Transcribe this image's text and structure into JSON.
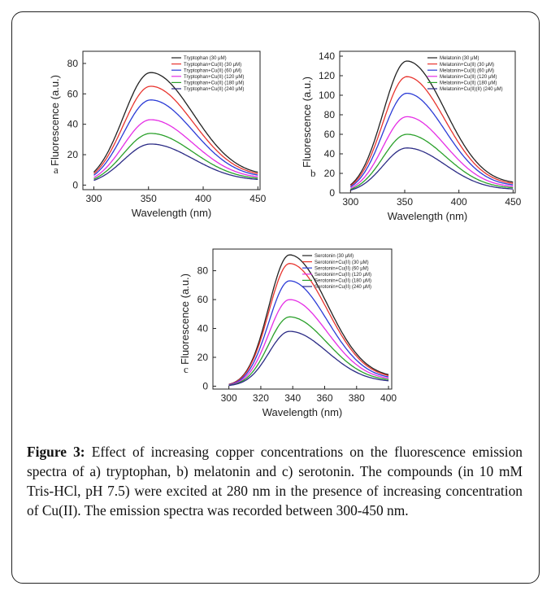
{
  "figure": {
    "caption_label": "Figure 3:",
    "caption_text": " Effect of increasing copper concentrations on the fluorescence emission spectra of a) tryptophan, b) melatonin and c) serotonin. The compounds (in 10 mM Tris-HCl, pH 7.5) were excited at 280 nm in the presence of increasing concentration of Cu(II). The emission spectra was recorded between 300-450 nm."
  },
  "colors": [
    "#222222",
    "#e8342e",
    "#2b3bd6",
    "#e52ee5",
    "#2aa02a",
    "#2b2b85"
  ],
  "chart_data": [
    {
      "type": "line",
      "panel_label": "a",
      "xlabel": "Wavelength (nm)",
      "ylabel": "Fluorescence (a.u.)",
      "xlim": [
        290,
        452
      ],
      "ylim": [
        -3,
        88
      ],
      "xticks": [
        300,
        350,
        400,
        450
      ],
      "yticks": [
        0,
        20,
        40,
        60,
        80
      ],
      "peak_x": 352,
      "start_x": 300,
      "end_x": 450,
      "width_left": 25,
      "width_right": 40,
      "legend_position": "top-right",
      "series": [
        {
          "name": "Tryptophan (30 μM)",
          "peak": 74,
          "end": 5
        },
        {
          "name": "Tryptophan+Cu(II) (30 μM)",
          "peak": 65,
          "end": 4.5
        },
        {
          "name": "Tryptophan+Cu(II) (60 μM)",
          "peak": 56,
          "end": 4
        },
        {
          "name": "Tryptophan+Cu(II) (120 μM)",
          "peak": 43,
          "end": 3.5
        },
        {
          "name": "Tryptophan+Cu(II) (180 μM)",
          "peak": 34,
          "end": 3
        },
        {
          "name": "Tryptophan+Cu(II) (240 μM)",
          "peak": 27,
          "end": 2.5
        }
      ]
    },
    {
      "type": "line",
      "panel_label": "b",
      "xlabel": "Wavelength (nm)",
      "ylabel": "Fluorescence (a.u.)",
      "xlim": [
        290,
        452
      ],
      "ylim": [
        0,
        145
      ],
      "xticks": [
        300,
        350,
        400,
        450
      ],
      "yticks": [
        0,
        20,
        40,
        60,
        80,
        100,
        120,
        140
      ],
      "peak_x": 352,
      "start_x": 300,
      "end_x": 450,
      "width_left": 22,
      "width_right": 36,
      "legend_position": "top-right",
      "series": [
        {
          "name": "Melatonin (30 μM)",
          "peak": 135,
          "end": 8
        },
        {
          "name": "Melatonin+Cu(II) (30 μM)",
          "peak": 119,
          "end": 7
        },
        {
          "name": "Melatonin+Cu(II) (60 μM)",
          "peak": 102,
          "end": 6
        },
        {
          "name": "Melatonin+Cu(II) (120 μM)",
          "peak": 78,
          "end": 5
        },
        {
          "name": "Melatonin+Cu(II) (180 μM)",
          "peak": 60,
          "end": 4
        },
        {
          "name": "Melatonin+Cu(II)(II) (240 μM)",
          "peak": 46,
          "end": 3
        }
      ]
    },
    {
      "type": "line",
      "panel_label": "c",
      "xlabel": "Wavelength (nm)",
      "ylabel": "Fluorescence (a.u.)",
      "xlim": [
        290,
        402
      ],
      "ylim": [
        -2,
        95
      ],
      "xticks": [
        300,
        320,
        340,
        360,
        380,
        400
      ],
      "yticks": [
        0,
        20,
        40,
        60,
        80
      ],
      "peak_x": 338,
      "start_x": 300,
      "end_x": 400,
      "width_left": 13,
      "width_right": 24,
      "legend_position": "top-right",
      "series": [
        {
          "name": "Serotonin (30 μM)",
          "peak": 91,
          "end": 5
        },
        {
          "name": "Serotonin+Cu(II) (30 μM)",
          "peak": 85,
          "end": 4.5
        },
        {
          "name": "Serotonin+Cu(II) (60 μM)",
          "peak": 73,
          "end": 4
        },
        {
          "name": "Serotonin+Cu(II) (120 μM)",
          "peak": 60,
          "end": 3.5
        },
        {
          "name": "Serotonin+Cu(II) (180 μM)",
          "peak": 48,
          "end": 3
        },
        {
          "name": "Serotonin+Cu(II) (240 μM)",
          "peak": 38,
          "end": 2.5
        }
      ]
    }
  ]
}
